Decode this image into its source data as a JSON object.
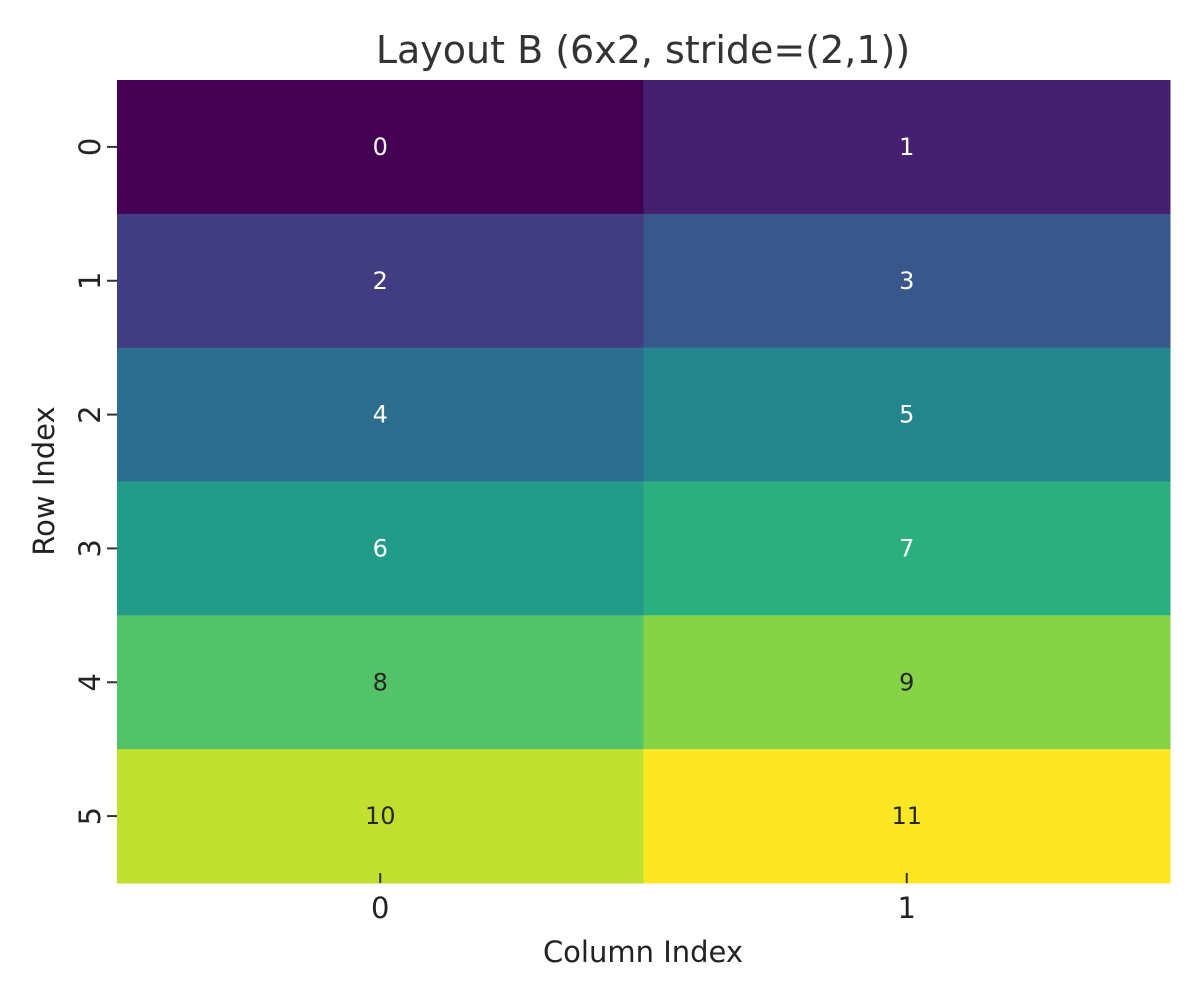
{
  "chart_data": {
    "type": "heatmap",
    "title": "Layout B (6x2, stride=(2,1))",
    "xlabel": "Column Index",
    "ylabel": "Row Index",
    "x_categories": [
      "0",
      "1"
    ],
    "y_categories": [
      "0",
      "1",
      "2",
      "3",
      "4",
      "5"
    ],
    "values": [
      [
        0,
        1
      ],
      [
        2,
        3
      ],
      [
        4,
        5
      ],
      [
        6,
        7
      ],
      [
        8,
        9
      ],
      [
        10,
        11
      ]
    ],
    "value_range": [
      0,
      11
    ],
    "colormap": "viridis",
    "colorbar": false,
    "grid": false,
    "annotated": true
  }
}
